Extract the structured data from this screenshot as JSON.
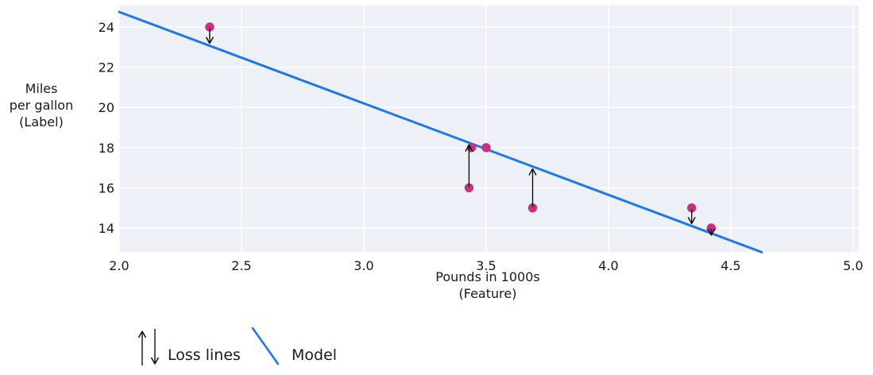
{
  "figure": {
    "background": "#ffffff",
    "plot_background": "#edf0f7",
    "grid_color": "#ffffff",
    "text_color": "#1a1a1a"
  },
  "chart_data": {
    "type": "scatter",
    "title": "",
    "xlabel": "Pounds in 1000s\n(Feature)",
    "ylabel": "Miles\nper gallon\n(Label)",
    "x_ticks": [
      2.0,
      2.5,
      3.0,
      3.5,
      4.0,
      4.5,
      5.0
    ],
    "x_tick_labels": [
      "2.0",
      "2.5",
      "3.0",
      "3.5",
      "4.0",
      "4.5",
      "5.0"
    ],
    "y_ticks": [
      14,
      16,
      18,
      20,
      22,
      24
    ],
    "y_tick_labels": [
      "14",
      "16",
      "18",
      "20",
      "22",
      "24"
    ],
    "xlim": [
      2.0,
      5.02
    ],
    "ylim": [
      12.8,
      25.08
    ],
    "grid": true,
    "points": [
      {
        "x": 2.37,
        "y": 24
      },
      {
        "x": 3.44,
        "y": 18
      },
      {
        "x": 3.5,
        "y": 18
      },
      {
        "x": 3.43,
        "y": 16
      },
      {
        "x": 3.69,
        "y": 15
      },
      {
        "x": 4.34,
        "y": 15
      },
      {
        "x": 4.42,
        "y": 14
      }
    ],
    "point_color": "#cb307e",
    "model": {
      "slope": -4.55,
      "intercept": 33.85,
      "color": "#1e78e8"
    },
    "loss_arrow_point_indices": [
      0,
      3,
      4,
      5,
      6
    ],
    "arrow_color": "#111111"
  },
  "legend": {
    "loss_label": "Loss lines",
    "model_label": "Model"
  }
}
